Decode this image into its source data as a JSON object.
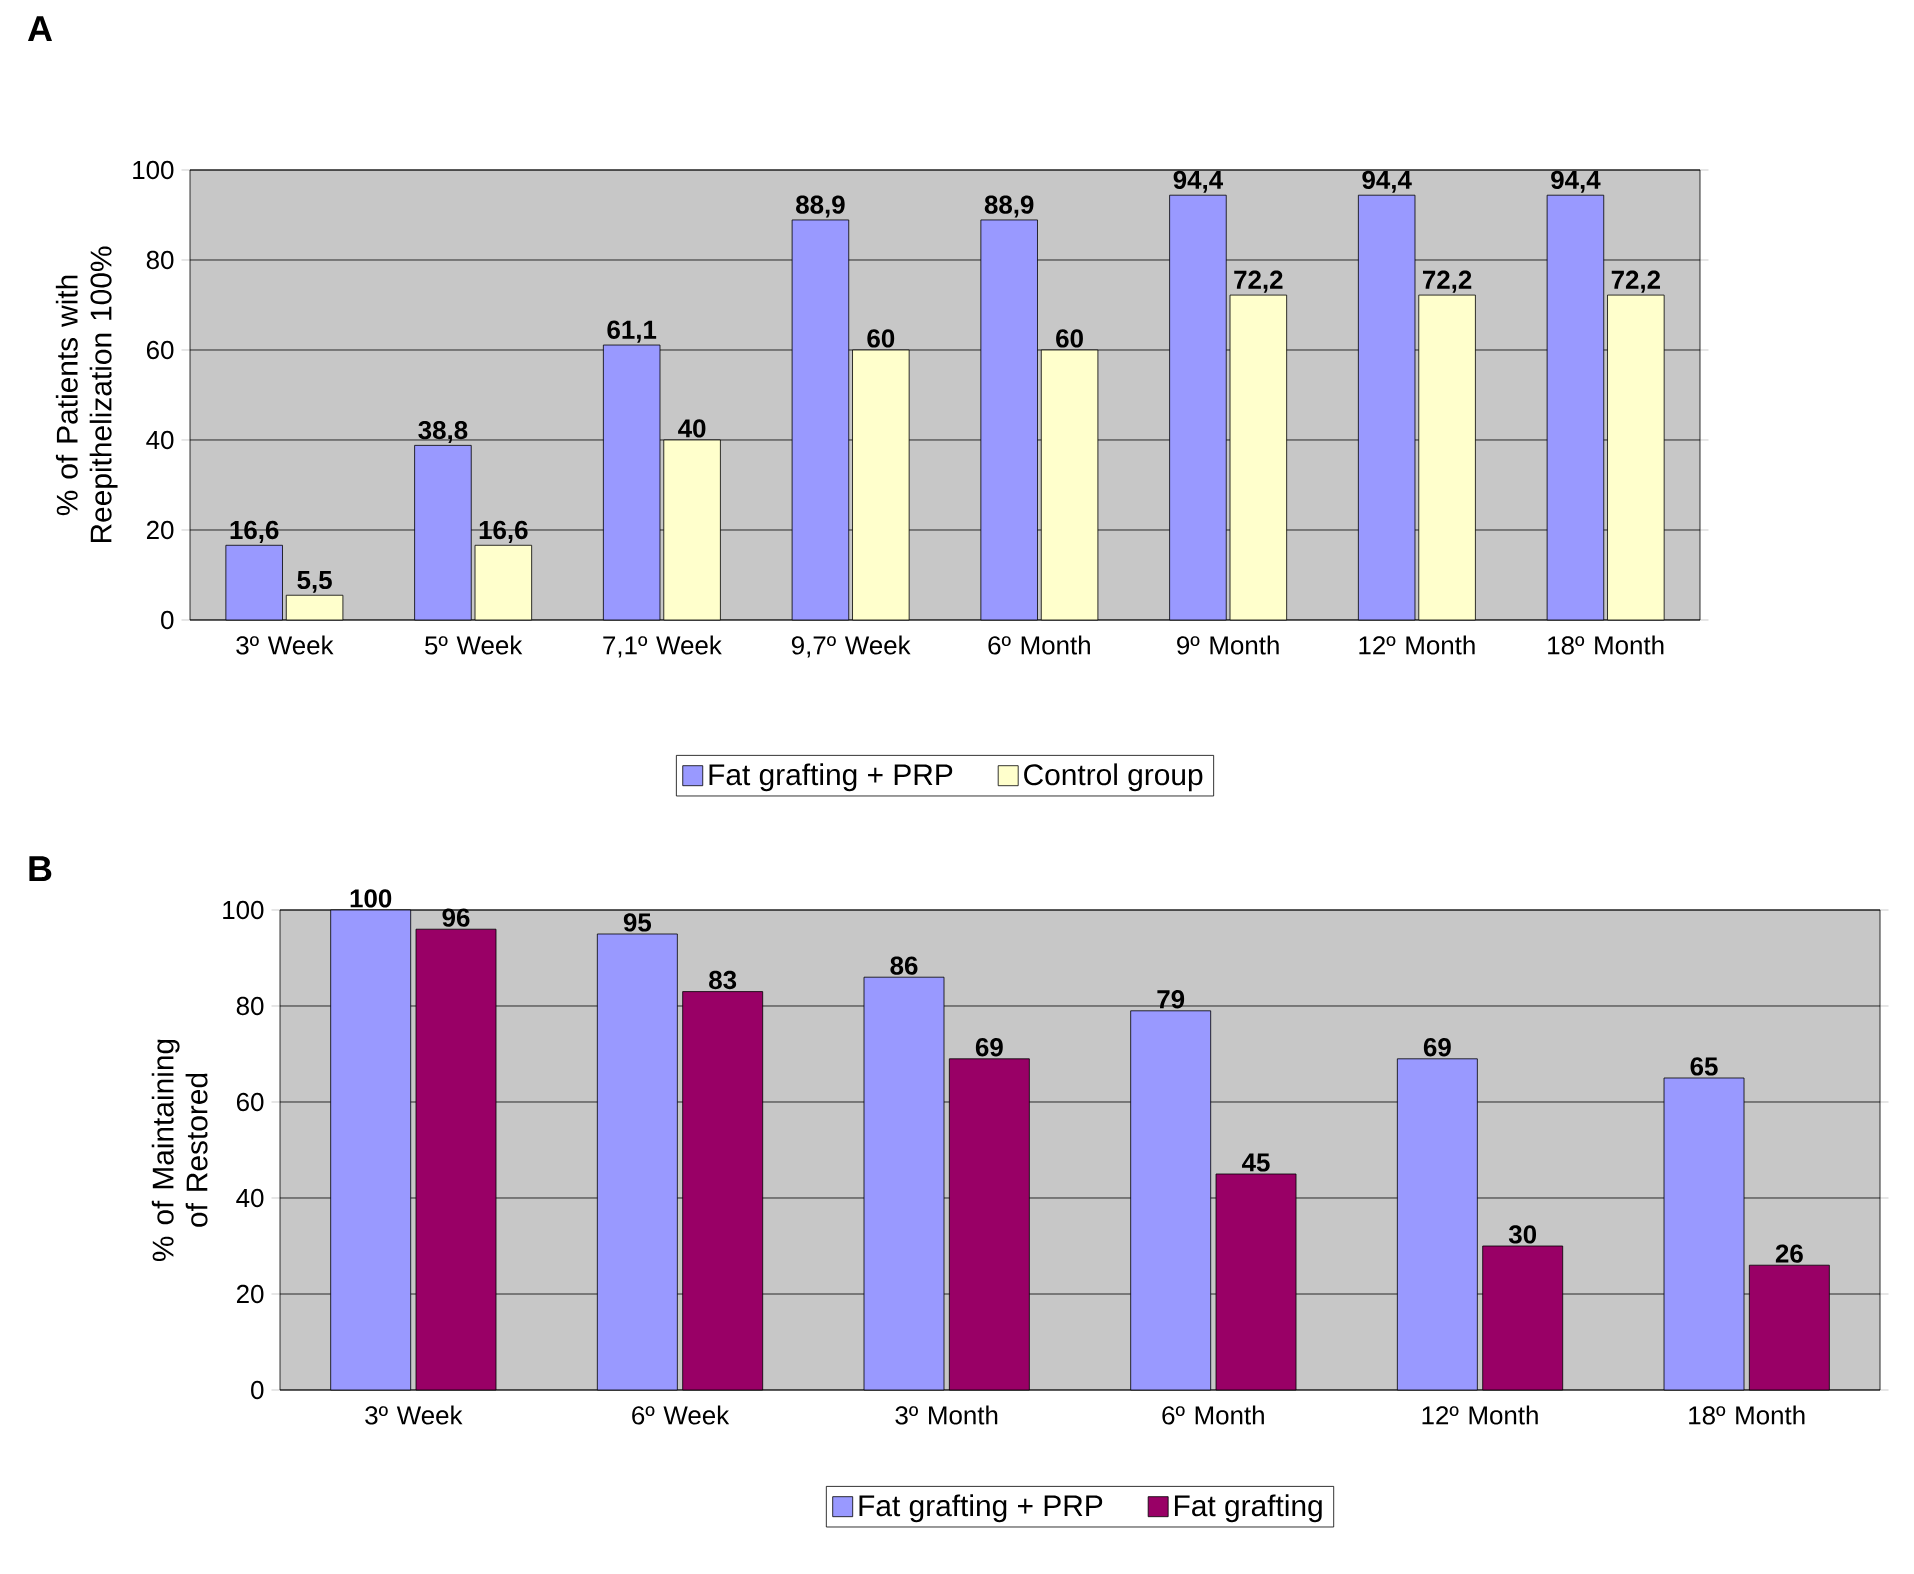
{
  "chart_data": [
    {
      "type": "bar",
      "title": "A",
      "ylabel": "% of Patients with Reepithelization 100%",
      "categories": [
        "3º Week",
        "5º Week",
        "7,1º Week",
        "9,7º Week",
        "6º Month",
        "9º Month",
        "12º Month",
        "18º Month"
      ],
      "series": [
        {
          "name": "Fat grafting + PRP",
          "color": "#9999ff",
          "values": [
            16.6,
            38.8,
            61.1,
            88.9,
            88.9,
            94.4,
            94.4,
            94.4
          ],
          "value_labels": [
            "16,6",
            "38,8",
            "61,1",
            "88,9",
            "88,9",
            "94,4",
            "94,4",
            "94,4"
          ]
        },
        {
          "name": "Control group",
          "color": "#ffffcc",
          "values": [
            5.5,
            16.6,
            40,
            60,
            60,
            72.2,
            72.2,
            72.2
          ],
          "value_labels": [
            "5,5",
            "16,6",
            "40",
            "60",
            "60",
            "72,2",
            "72,2",
            "72,2"
          ]
        }
      ],
      "ylim": [
        0,
        100
      ],
      "yticks": [
        0,
        20,
        40,
        60,
        80,
        100
      ],
      "grid": "y",
      "legend": "bottom"
    },
    {
      "type": "bar",
      "title": "B",
      "ylabel": "% of Maintaining of Restored",
      "categories": [
        "3º Week",
        "6º Week",
        "3º Month",
        "6º Month",
        "12º Month",
        "18º Month"
      ],
      "series": [
        {
          "name": "Fat grafting + PRP",
          "color": "#9999ff",
          "values": [
            100,
            95,
            86,
            79,
            69,
            65
          ]
        },
        {
          "name": "Fat grafting",
          "color": "#990066",
          "values": [
            96,
            83,
            69,
            45,
            30,
            26
          ]
        }
      ],
      "ylim": [
        0,
        100
      ],
      "yticks": [
        0,
        20,
        40,
        60,
        80,
        100
      ],
      "grid": "y",
      "legend": "bottom",
      "data_labels": true
    }
  ]
}
